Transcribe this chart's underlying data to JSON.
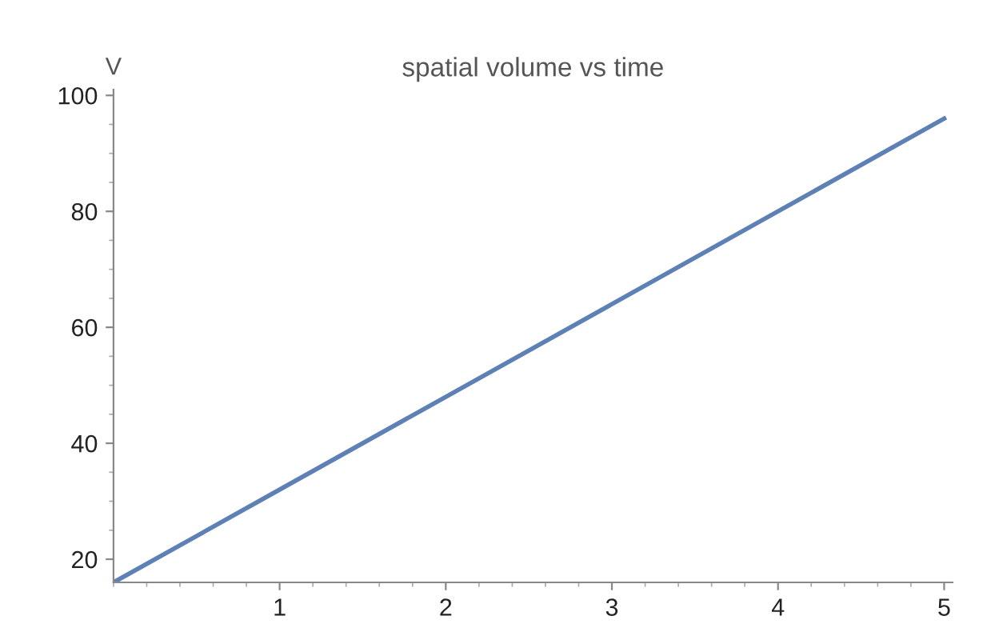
{
  "chart_data": {
    "type": "line",
    "title": "spatial volume vs time",
    "ylabel": "V",
    "x": [
      0,
      1,
      2,
      3,
      4,
      5
    ],
    "series": [
      {
        "color": "#5e81b5",
        "values": [
          16,
          32,
          48,
          64,
          80,
          96
        ]
      }
    ],
    "xlim": [
      0,
      5.05
    ],
    "ylim": [
      16,
      101
    ],
    "xticks": [
      1,
      2,
      3,
      4,
      5
    ],
    "yticks": [
      20,
      40,
      60,
      80,
      100
    ],
    "grid": false,
    "legend": false,
    "marker": "none",
    "line_style": "solid"
  }
}
